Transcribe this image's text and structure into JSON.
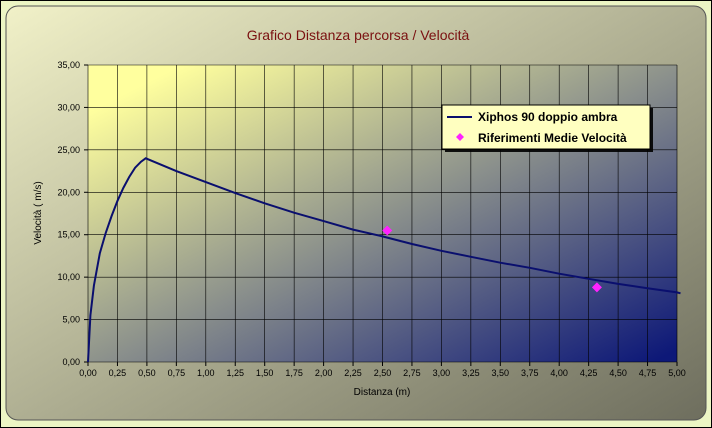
{
  "colors": {
    "frame_outer": "#ecf5c4",
    "frame_inner_light": "#f1f1c8",
    "frame_inner_dark": "#6e6e5e",
    "plot_light": "#ffff9e",
    "plot_dark": "#0d1878",
    "grid": "#000000",
    "series_line": "#0a0f6e",
    "marker": "#ff22ff",
    "title": "#7a1010"
  },
  "chart_data": {
    "type": "line",
    "title": "Grafico Distanza percorsa / Velocità",
    "xlabel": "Distanza (m)",
    "ylabel": "Velocità ( m/s)",
    "xlim": [
      0,
      5
    ],
    "ylim": [
      0,
      35
    ],
    "grid": true,
    "legend_position": "top-right",
    "x_ticks": [
      "0,00",
      "0,25",
      "0,50",
      "0,75",
      "1,00",
      "1,25",
      "1,50",
      "1,75",
      "2,00",
      "2,25",
      "2,50",
      "2,75",
      "3,00",
      "3,25",
      "3,50",
      "3,75",
      "4,00",
      "4,25",
      "4,50",
      "4,75",
      "5,00"
    ],
    "y_ticks": [
      "0,00",
      "5,00",
      "10,00",
      "15,00",
      "20,00",
      "25,00",
      "30,00",
      "35,00"
    ],
    "series": [
      {
        "name": "Xiphos 90 doppio ambra",
        "kind": "line",
        "x": [
          0,
          0.02,
          0.05,
          0.1,
          0.15,
          0.2,
          0.25,
          0.3,
          0.35,
          0.4,
          0.45,
          0.49,
          0.75,
          1.0,
          1.25,
          1.5,
          1.75,
          2.0,
          2.25,
          2.5,
          2.75,
          3.0,
          3.25,
          3.5,
          3.75,
          4.0,
          4.25,
          4.5,
          4.75,
          5.0,
          5.03
        ],
        "y": [
          0,
          5.5,
          9.0,
          12.8,
          15.2,
          17.2,
          19.0,
          20.5,
          21.8,
          22.9,
          23.6,
          24.0,
          22.5,
          21.2,
          19.9,
          18.7,
          17.6,
          16.6,
          15.6,
          14.8,
          13.9,
          13.1,
          12.4,
          11.7,
          11.1,
          10.4,
          9.8,
          9.2,
          8.7,
          8.2,
          8.1
        ]
      },
      {
        "name": "Riferimenti Medie Velocità",
        "kind": "scatter",
        "x": [
          2.54,
          4.32
        ],
        "y": [
          15.5,
          8.8
        ]
      }
    ]
  }
}
